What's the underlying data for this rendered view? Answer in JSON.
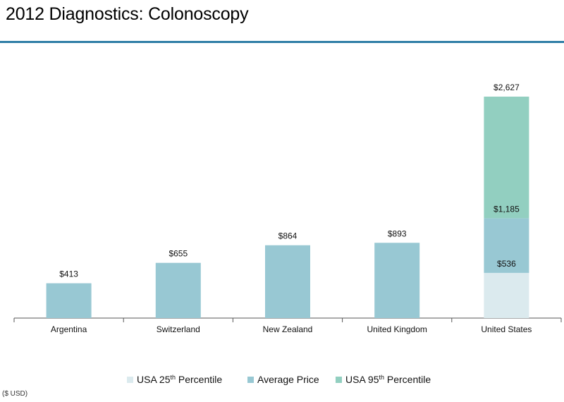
{
  "title": "2012 Diagnostics: Colonoscopy",
  "unit_note": "($ USD)",
  "colors": {
    "title_rule": "#2E7DA6",
    "average_price": "#98C8D3",
    "usa_25th": "#DBEAEE",
    "usa_95th": "#92CFC0",
    "axis": "#555555"
  },
  "chart_data": {
    "type": "bar",
    "categories": [
      "Argentina",
      "Switzerland",
      "New Zealand",
      "United Kingdom",
      "United States"
    ],
    "ylim": [
      0,
      2627
    ],
    "grid": false,
    "legend_position": "bottom",
    "stacked_category": "United States",
    "series": [
      {
        "name": "USA 25th Percentile",
        "values": [
          null,
          null,
          null,
          null,
          536
        ],
        "color": "#DBEAEE"
      },
      {
        "name": "Average Price",
        "values": [
          413,
          655,
          864,
          893,
          1185
        ],
        "color": "#98C8D3"
      },
      {
        "name": "USA 95th Percentile",
        "values": [
          null,
          null,
          null,
          null,
          2627
        ],
        "color": "#92CFC0"
      }
    ],
    "data_labels": {
      "Argentina": [
        "$413"
      ],
      "Switzerland": [
        "$655"
      ],
      "New Zealand": [
        "$864"
      ],
      "United Kingdom": [
        "$893"
      ],
      "United States": [
        "$536",
        "$1,185",
        "$2,627"
      ]
    },
    "legend": [
      {
        "label": "USA 25",
        "sup": "th",
        "suffix": " Percentile",
        "color": "#DBEAEE"
      },
      {
        "label": "Average Price",
        "sup": "",
        "suffix": "",
        "color": "#98C8D3"
      },
      {
        "label": "USA  95",
        "sup": "th",
        "suffix": " Percentile",
        "color": "#92CFC0"
      }
    ]
  }
}
